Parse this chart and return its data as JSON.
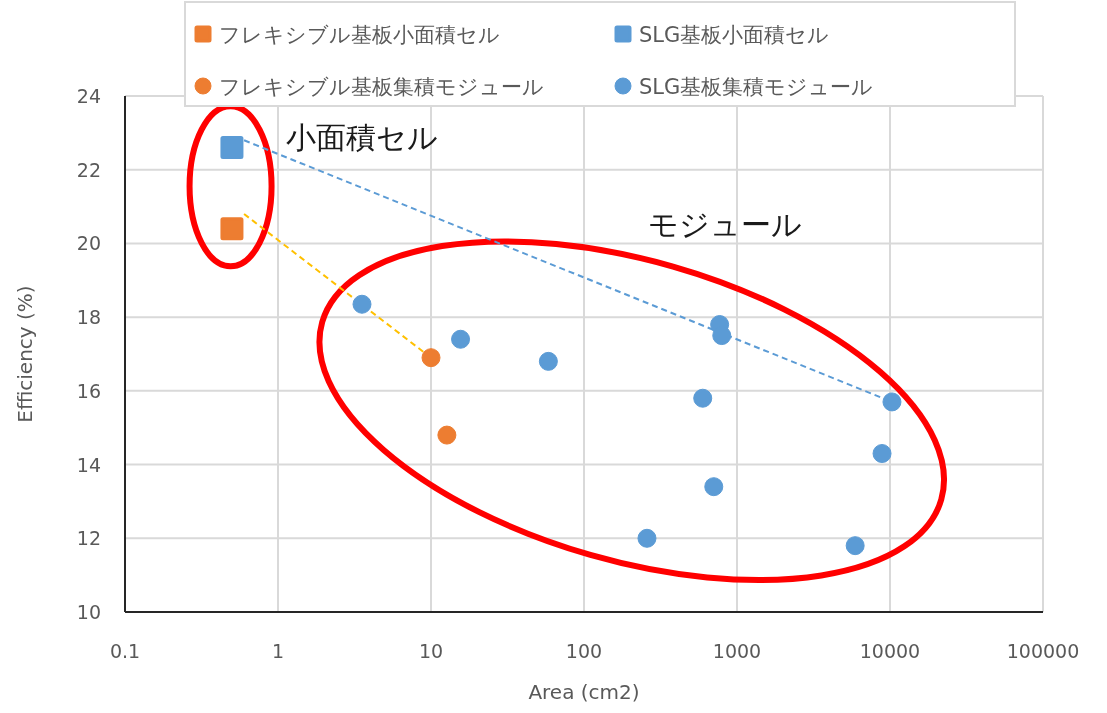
{
  "chart_data": {
    "type": "scatter",
    "xlabel": "Area (cm2)",
    "ylabel": "Efficiency (%)",
    "log": "x",
    "xlim": [
      0.1,
      100000
    ],
    "xticks": [
      0.1,
      1,
      10,
      100,
      1000,
      10000,
      100000
    ],
    "ylim": [
      10,
      24
    ],
    "yticks": [
      10,
      12,
      14,
      16,
      18,
      20,
      22,
      24
    ],
    "grid": true,
    "legend": "top",
    "annotations": [
      "小面積セル",
      "モジュール"
    ],
    "series": [
      {
        "name": "フレキシブル基板小面積セル",
        "marker": "square",
        "color": "#ed7d31",
        "x": [
          0.5
        ],
        "values": [
          20.4
        ]
      },
      {
        "name": "SLG基板小面積セル",
        "marker": "square",
        "color": "#5b9bd5",
        "x": [
          0.5
        ],
        "values": [
          22.6
        ]
      },
      {
        "name": "フレキシブル基板集積モジュール",
        "marker": "circle",
        "color": "#ed7d31",
        "x": [
          10,
          12.7
        ],
        "values": [
          16.9,
          14.8
        ]
      },
      {
        "name": "SLG基板集積モジュール",
        "marker": "circle",
        "color": "#5b9bd5",
        "x": [
          3.54,
          15.6,
          58.5,
          258,
          597,
          705,
          770,
          795,
          5920,
          8870,
          10300
        ],
        "values": [
          18.35,
          17.4,
          16.8,
          12.0,
          15.8,
          13.4,
          17.8,
          17.5,
          11.8,
          14.3,
          15.7
        ]
      },
      {
        "type": "line",
        "line_style": "dashed",
        "color": "#ffc000",
        "x": [
          0.6,
          10
        ],
        "values": [
          20.8,
          16.9
        ]
      },
      {
        "type": "line",
        "line_style": "dashed",
        "color": "#5b9bd5",
        "x": [
          0.6,
          10300
        ],
        "values": [
          22.8,
          15.7
        ]
      }
    ]
  }
}
